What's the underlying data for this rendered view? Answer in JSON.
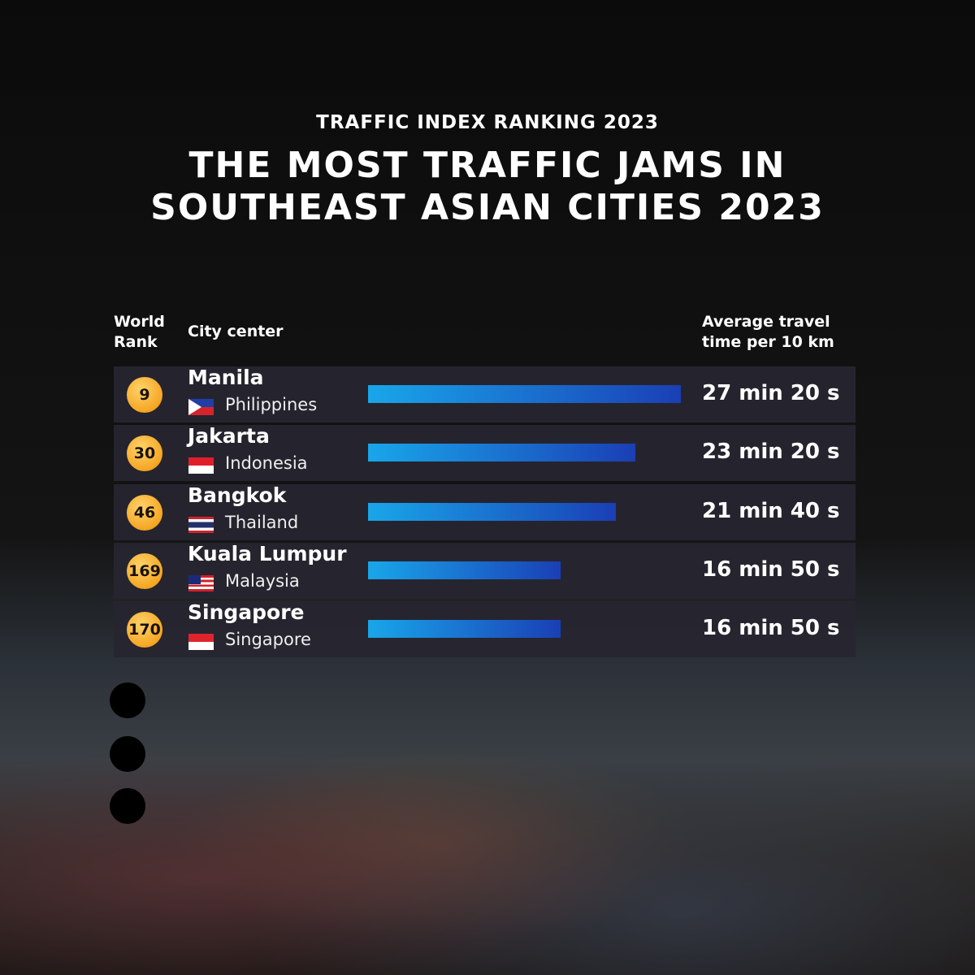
{
  "chart_data": {
    "type": "bar",
    "subtitle": "TRAFFIC INDEX RANKING 2023",
    "title": "THE MOST TRAFFIC JAMS IN SOUTHEAST ASIAN CITIES 2023",
    "column_headers": {
      "rank": "World Rank",
      "city": "City center",
      "value": "Average travel time per 10 km"
    },
    "ranks": [
      9,
      30,
      46,
      169,
      170
    ],
    "categories": [
      "Manila",
      "Jakarta",
      "Bangkok",
      "Kuala Lumpur",
      "Singapore"
    ],
    "countries": [
      "Philippines",
      "Indonesia",
      "Thailand",
      "Malaysia",
      "Singapore"
    ],
    "values": [
      1640,
      1400,
      1300,
      1010,
      1010
    ],
    "value_labels": [
      "27 min 20 s",
      "23 min 20 s",
      "21 min 40 s",
      "16 min 50 s",
      "16 min 50 s"
    ],
    "color": [
      "#19a6ea",
      "#1a3fb5"
    ]
  }
}
